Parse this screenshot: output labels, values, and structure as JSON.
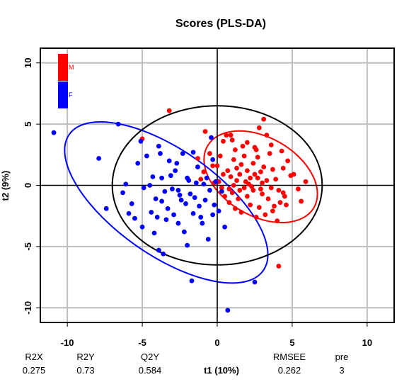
{
  "chart_data": {
    "type": "scatter",
    "title": "Scores (PLS-DA)",
    "xlabel": "t1 (10%)",
    "ylabel": "t2 (9%)",
    "xlim": [
      -11.8,
      11.8
    ],
    "ylim": [
      -11.2,
      11.2
    ],
    "xticks": [
      -10,
      -5,
      0,
      5,
      10
    ],
    "yticks": [
      -10,
      -5,
      0,
      5,
      10
    ],
    "xtick_labels": [
      "-10",
      "-5",
      "0",
      "5",
      "10"
    ],
    "ytick_labels": [
      "-10",
      "-5",
      "0",
      "5",
      "10"
    ],
    "grid": true,
    "legend_position": "top-left",
    "series": [
      {
        "name": "M",
        "color": "#ff0000",
        "ellipse": {
          "center": [
            2.9,
            0.7
          ],
          "rx": 4.1,
          "ry": 3.2,
          "angle_deg": -30
        },
        "points": [
          [
            -5.0,
            3.8
          ],
          [
            -3.2,
            6.1
          ],
          [
            -0.8,
            4.4
          ],
          [
            -1.3,
            2.2
          ],
          [
            -0.9,
            1.1
          ],
          [
            -1.1,
            0.5
          ],
          [
            -0.3,
            1.6
          ],
          [
            -0.5,
            2.6
          ],
          [
            0.1,
            0.3
          ],
          [
            0.2,
            2.4
          ],
          [
            0.4,
            3.6
          ],
          [
            0.6,
            4.1
          ],
          [
            0.9,
            4.1
          ],
          [
            1.0,
            3.7
          ],
          [
            1.1,
            2.1
          ],
          [
            1.3,
            1.4
          ],
          [
            1.5,
            0.9
          ],
          [
            1.7,
            3.2
          ],
          [
            1.8,
            2.4
          ],
          [
            2.0,
            1.2
          ],
          [
            2.2,
            0.6
          ],
          [
            2.4,
            1.8
          ],
          [
            2.5,
            3.1
          ],
          [
            2.7,
            2.3
          ],
          [
            2.9,
            1.1
          ],
          [
            3.0,
            0.2
          ],
          [
            3.1,
            5.4
          ],
          [
            3.3,
            4.1
          ],
          [
            3.5,
            2.6
          ],
          [
            3.7,
            1.3
          ],
          [
            3.9,
            0.5
          ],
          [
            4.1,
            -0.4
          ],
          [
            4.3,
            2.8
          ],
          [
            4.5,
            -0.9
          ],
          [
            4.6,
            -1.6
          ],
          [
            4.9,
            0.8
          ],
          [
            5.1,
            0.9
          ],
          [
            5.4,
            -0.3
          ],
          [
            5.6,
            -1.3
          ],
          [
            5.9,
            0.3
          ],
          [
            0.3,
            -0.2
          ],
          [
            0.5,
            -0.9
          ],
          [
            0.8,
            -1.4
          ],
          [
            1.0,
            -0.6
          ],
          [
            1.2,
            -1.9
          ],
          [
            1.4,
            -1.1
          ],
          [
            1.6,
            -2.2
          ],
          [
            1.8,
            -0.2
          ],
          [
            2.0,
            -0.9
          ],
          [
            2.2,
            -1.6
          ],
          [
            2.4,
            -0.4
          ],
          [
            2.6,
            -2.6
          ],
          [
            2.8,
            -1.8
          ],
          [
            3.0,
            -0.7
          ],
          [
            3.2,
            -2.4
          ],
          [
            3.4,
            -1.1
          ],
          [
            3.6,
            -0.2
          ],
          [
            3.8,
            -1.7
          ],
          [
            4.0,
            -2.9
          ],
          [
            4.2,
            -1.4
          ],
          [
            4.4,
            -0.6
          ],
          [
            2.1,
            0.1
          ],
          [
            2.3,
            -0.1
          ],
          [
            2.5,
            0.9
          ],
          [
            1.1,
            0.0
          ],
          [
            1.3,
            0.4
          ],
          [
            1.5,
            -0.4
          ],
          [
            0.7,
            1.2
          ],
          [
            0.9,
            0.7
          ],
          [
            2.7,
            0.6
          ],
          [
            2.9,
            -0.3
          ],
          [
            3.1,
            1.5
          ],
          [
            3.3,
            0.4
          ],
          [
            1.9,
            0.3
          ],
          [
            4.1,
            -6.6
          ],
          [
            3.7,
            -2.1
          ],
          [
            2.6,
            2.9
          ],
          [
            1.6,
            1.7
          ],
          [
            0.4,
            0.9
          ],
          [
            0.0,
            1.6
          ],
          [
            -0.2,
            0.2
          ],
          [
            1.2,
            2.9
          ],
          [
            2.0,
            3.5
          ],
          [
            2.8,
            4.7
          ],
          [
            3.6,
            3.3
          ],
          [
            4.4,
            1.4
          ],
          [
            4.7,
            2.0
          ],
          [
            0.8,
            -0.3
          ]
        ]
      },
      {
        "name": "F",
        "color": "#0000ff",
        "ellipse": {
          "center": [
            -3.4,
            -1.4
          ],
          "rx": 7.9,
          "ry": 4.3,
          "angle_deg": -35
        },
        "points": [
          [
            -10.9,
            4.3
          ],
          [
            -7.9,
            2.2
          ],
          [
            -7.4,
            -1.9
          ],
          [
            -6.6,
            5.0
          ],
          [
            -6.1,
            0.1
          ],
          [
            -5.7,
            -1.5
          ],
          [
            -5.3,
            1.8
          ],
          [
            -5.0,
            -3.4
          ],
          [
            -4.7,
            2.4
          ],
          [
            -4.4,
            -2.2
          ],
          [
            -4.1,
            -1.1
          ],
          [
            -3.9,
            3.2
          ],
          [
            -3.7,
            0.6
          ],
          [
            -3.6,
            -5.6
          ],
          [
            -3.4,
            -2.8
          ],
          [
            -3.2,
            2.0
          ],
          [
            -3.0,
            -0.3
          ],
          [
            -2.8,
            1.2
          ],
          [
            -2.6,
            -0.4
          ],
          [
            -2.4,
            -1.2
          ],
          [
            -2.2,
            -3.8
          ],
          [
            -2.0,
            0.6
          ],
          [
            -1.8,
            -0.7
          ],
          [
            -1.6,
            -2.3
          ],
          [
            -1.4,
            0.2
          ],
          [
            -1.2,
            -1.7
          ],
          [
            -1.0,
            -3.1
          ],
          [
            -0.9,
            0.1
          ],
          [
            -0.8,
            -1.2
          ],
          [
            -0.6,
            -4.4
          ],
          [
            -0.5,
            -0.4
          ],
          [
            -0.4,
            3.9
          ],
          [
            -0.2,
            -1.6
          ],
          [
            -0.1,
            0.3
          ],
          [
            0.1,
            -2.1
          ],
          [
            0.3,
            -0.5
          ],
          [
            0.5,
            -3.4
          ],
          [
            -1.7,
            -7.8
          ],
          [
            0.7,
            -10.2
          ],
          [
            2.5,
            -7.9
          ],
          [
            -6.3,
            -0.6
          ],
          [
            -4.9,
            -0.2
          ],
          [
            -4.3,
            0.7
          ],
          [
            -4.0,
            -2.6
          ],
          [
            -3.8,
            2.6
          ],
          [
            -3.5,
            -0.5
          ],
          [
            -3.3,
            -1.9
          ],
          [
            -3.1,
            0.8
          ],
          [
            -2.9,
            -2.4
          ],
          [
            -2.7,
            1.8
          ],
          [
            -2.5,
            -0.8
          ],
          [
            -2.3,
            2.6
          ],
          [
            -2.1,
            -1.5
          ],
          [
            -1.9,
            0.4
          ],
          [
            -1.5,
            -1.0
          ],
          [
            -1.3,
            1.5
          ],
          [
            -1.1,
            -2.6
          ],
          [
            -0.7,
            0.6
          ],
          [
            -0.3,
            -2.4
          ],
          [
            -4.5,
            0.0
          ],
          [
            -5.5,
            -2.7
          ],
          [
            -3.7,
            -1.3
          ],
          [
            -2.0,
            -4.9
          ],
          [
            -5.1,
            3.6
          ],
          [
            -4.2,
            -3.9
          ],
          [
            -2.6,
            -3.1
          ],
          [
            -1.6,
            2.7
          ],
          [
            -0.3,
            2.1
          ],
          [
            -3.9,
            -5.3
          ],
          [
            -5.9,
            -2.3
          ]
        ]
      },
      {
        "name": "",
        "color": "#000000",
        "ellipse": {
          "center": [
            0.0,
            0.0
          ],
          "rx": 7.0,
          "ry": 6.5,
          "angle_deg": 0
        }
      }
    ]
  },
  "stats": {
    "headers": [
      "R2X",
      "R2Y",
      "Q2Y",
      "RMSEE",
      "pre"
    ],
    "values": [
      "0.275",
      "0.73",
      "0.584",
      "0.262",
      "3"
    ]
  }
}
